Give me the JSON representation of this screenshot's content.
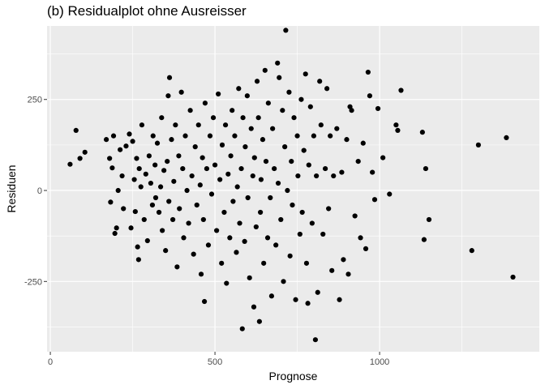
{
  "chart_data": {
    "type": "scatter",
    "title": "(b) Residualplot ohne Ausreisser",
    "xlabel": "Prognose",
    "ylabel": "Residuen",
    "xlim": [
      -10,
      1485
    ],
    "ylim": [
      -443,
      452
    ],
    "x_ticks": [
      0,
      500,
      1000
    ],
    "x_tick_labels": [
      "0",
      "500",
      "1000"
    ],
    "y_ticks": [
      -250,
      0,
      250
    ],
    "y_tick_labels": [
      "-250",
      "0",
      "250"
    ],
    "grid": true,
    "background": "#ebebeb",
    "grid_color": "#ffffff",
    "point_color": "#000000",
    "points": [
      [
        60,
        72
      ],
      [
        78,
        165
      ],
      [
        90,
        88
      ],
      [
        105,
        105
      ],
      [
        170,
        140
      ],
      [
        180,
        88
      ],
      [
        183,
        -32
      ],
      [
        188,
        62
      ],
      [
        192,
        150
      ],
      [
        196,
        -118
      ],
      [
        201,
        -103
      ],
      [
        206,
        0
      ],
      [
        212,
        112
      ],
      [
        218,
        40
      ],
      [
        222,
        -50
      ],
      [
        230,
        122
      ],
      [
        240,
        155
      ],
      [
        245,
        -103
      ],
      [
        250,
        135
      ],
      [
        255,
        30
      ],
      [
        258,
        -58
      ],
      [
        262,
        88
      ],
      [
        265,
        -155
      ],
      [
        268,
        -190
      ],
      [
        270,
        60
      ],
      [
        275,
        10
      ],
      [
        278,
        180
      ],
      [
        285,
        -80
      ],
      [
        290,
        45
      ],
      [
        295,
        -138
      ],
      [
        300,
        95
      ],
      [
        305,
        20
      ],
      [
        310,
        -40
      ],
      [
        312,
        150
      ],
      [
        318,
        70
      ],
      [
        320,
        -20
      ],
      [
        325,
        130
      ],
      [
        330,
        -60
      ],
      [
        335,
        10
      ],
      [
        338,
        200
      ],
      [
        340,
        -110
      ],
      [
        345,
        55
      ],
      [
        350,
        -165
      ],
      [
        355,
        80
      ],
      [
        358,
        260
      ],
      [
        360,
        -30
      ],
      [
        362,
        310
      ],
      [
        368,
        140
      ],
      [
        372,
        -80
      ],
      [
        375,
        25
      ],
      [
        380,
        180
      ],
      [
        385,
        -210
      ],
      [
        390,
        95
      ],
      [
        392,
        -50
      ],
      [
        398,
        270
      ],
      [
        402,
        60
      ],
      [
        405,
        -130
      ],
      [
        410,
        150
      ],
      [
        415,
        0
      ],
      [
        420,
        -90
      ],
      [
        425,
        220
      ],
      [
        430,
        40
      ],
      [
        435,
        -175
      ],
      [
        440,
        120
      ],
      [
        445,
        -40
      ],
      [
        450,
        180
      ],
      [
        455,
        15
      ],
      [
        458,
        -230
      ],
      [
        462,
        90
      ],
      [
        465,
        -80
      ],
      [
        468,
        -305
      ],
      [
        470,
        240
      ],
      [
        475,
        60
      ],
      [
        480,
        -150
      ],
      [
        485,
        150
      ],
      [
        490,
        -10
      ],
      [
        495,
        200
      ],
      [
        500,
        70
      ],
      [
        505,
        -110
      ],
      [
        510,
        265
      ],
      [
        515,
        30
      ],
      [
        520,
        -200
      ],
      [
        522,
        125
      ],
      [
        528,
        -60
      ],
      [
        532,
        180
      ],
      [
        535,
        -255
      ],
      [
        540,
        45
      ],
      [
        545,
        -130
      ],
      [
        548,
        95
      ],
      [
        552,
        220
      ],
      [
        555,
        -30
      ],
      [
        560,
        150
      ],
      [
        565,
        -170
      ],
      [
        568,
        10
      ],
      [
        572,
        280
      ],
      [
        575,
        -90
      ],
      [
        580,
        60
      ],
      [
        583,
        -380
      ],
      [
        585,
        200
      ],
      [
        590,
        -140
      ],
      [
        592,
        120
      ],
      [
        598,
        260
      ],
      [
        600,
        -20
      ],
      [
        605,
        -240
      ],
      [
        610,
        170
      ],
      [
        615,
        40
      ],
      [
        618,
        -320
      ],
      [
        620,
        90
      ],
      [
        625,
        -100
      ],
      [
        628,
        300
      ],
      [
        632,
        200
      ],
      [
        635,
        -360
      ],
      [
        638,
        -60
      ],
      [
        640,
        30
      ],
      [
        645,
        140
      ],
      [
        648,
        -200
      ],
      [
        652,
        330
      ],
      [
        655,
        80
      ],
      [
        660,
        -130
      ],
      [
        662,
        240
      ],
      [
        668,
        -20
      ],
      [
        672,
        -290
      ],
      [
        675,
        170
      ],
      [
        680,
        60
      ],
      [
        685,
        -150
      ],
      [
        690,
        350
      ],
      [
        692,
        20
      ],
      [
        695,
        310
      ],
      [
        700,
        -80
      ],
      [
        705,
        220
      ],
      [
        708,
        -250
      ],
      [
        712,
        120
      ],
      [
        715,
        440
      ],
      [
        720,
        0
      ],
      [
        725,
        270
      ],
      [
        728,
        -180
      ],
      [
        732,
        80
      ],
      [
        735,
        -40
      ],
      [
        740,
        200
      ],
      [
        745,
        -300
      ],
      [
        750,
        150
      ],
      [
        752,
        40
      ],
      [
        758,
        -120
      ],
      [
        762,
        250
      ],
      [
        765,
        -60
      ],
      [
        770,
        110
      ],
      [
        775,
        320
      ],
      [
        778,
        -200
      ],
      [
        782,
        -310
      ],
      [
        785,
        70
      ],
      [
        790,
        230
      ],
      [
        795,
        -90
      ],
      [
        800,
        150
      ],
      [
        805,
        -410
      ],
      [
        808,
        40
      ],
      [
        812,
        -280
      ],
      [
        818,
        300
      ],
      [
        822,
        180
      ],
      [
        828,
        -120
      ],
      [
        835,
        60
      ],
      [
        840,
        280
      ],
      [
        845,
        -50
      ],
      [
        850,
        150
      ],
      [
        855,
        -220
      ],
      [
        860,
        40
      ],
      [
        870,
        170
      ],
      [
        878,
        -300
      ],
      [
        885,
        50
      ],
      [
        890,
        -190
      ],
      [
        900,
        140
      ],
      [
        905,
        -230
      ],
      [
        910,
        230
      ],
      [
        915,
        220
      ],
      [
        925,
        -70
      ],
      [
        935,
        80
      ],
      [
        942,
        -130
      ],
      [
        950,
        130
      ],
      [
        958,
        -160
      ],
      [
        965,
        325
      ],
      [
        970,
        260
      ],
      [
        978,
        50
      ],
      [
        985,
        -25
      ],
      [
        995,
        225
      ],
      [
        1010,
        90
      ],
      [
        1030,
        -10
      ],
      [
        1050,
        180
      ],
      [
        1055,
        165
      ],
      [
        1065,
        275
      ],
      [
        1130,
        160
      ],
      [
        1135,
        -135
      ],
      [
        1140,
        60
      ],
      [
        1150,
        -80
      ],
      [
        1280,
        -165
      ],
      [
        1300,
        125
      ],
      [
        1385,
        145
      ],
      [
        1405,
        -238
      ]
    ]
  }
}
